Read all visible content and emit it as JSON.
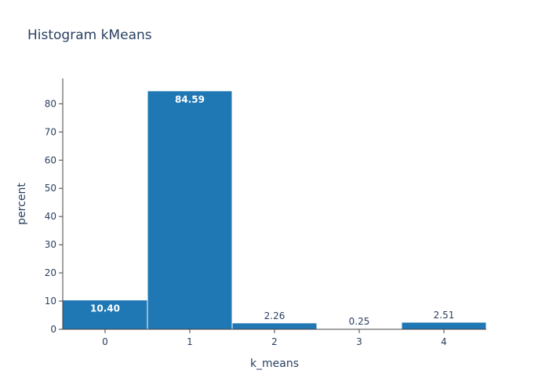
{
  "chart_data": {
    "type": "bar",
    "title": "Histogram kMeans",
    "xlabel": "k_means",
    "ylabel": "percent",
    "categories": [
      "0",
      "1",
      "2",
      "3",
      "4"
    ],
    "values": [
      10.4,
      84.59,
      2.26,
      0.25,
      2.51
    ],
    "value_labels": [
      "10.40",
      "84.59",
      "2.26",
      "0.25",
      "2.51"
    ],
    "yticks": [
      "0",
      "10",
      "20",
      "30",
      "40",
      "50",
      "60",
      "70",
      "80"
    ],
    "ylim": [
      0,
      89
    ],
    "xlim": [
      -0.5,
      4.5
    ],
    "grid": false,
    "colors": {
      "bar": "#1f77b4",
      "bar_edge": "#ffffff",
      "text": "#2a3f5f",
      "label_inside": "#ffffff",
      "label_outside": "#2a3f5f",
      "axis": "#444444"
    }
  }
}
